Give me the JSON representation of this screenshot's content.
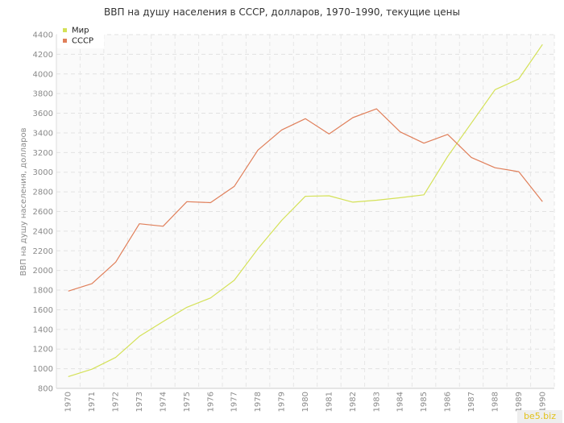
{
  "chart_data": {
    "type": "line",
    "title": "ВВП на душу населения в СССР, долларов, 1970–1990, текущие цены",
    "ylabel": "ВВП на душу населения, долларов",
    "xlabel": "",
    "x": [
      "1970",
      "1971",
      "1972",
      "1973",
      "1974",
      "1975",
      "1976",
      "1977",
      "1978",
      "1979",
      "1980",
      "1981",
      "1982",
      "1983",
      "1984",
      "1985",
      "1986",
      "1987",
      "1988",
      "1989",
      "1990"
    ],
    "ylim": [
      800,
      4400
    ],
    "yticks": [
      800,
      1000,
      1200,
      1400,
      1600,
      1800,
      2000,
      2200,
      2400,
      2600,
      2800,
      3000,
      3200,
      3400,
      3600,
      3800,
      4000,
      4200,
      4400
    ],
    "grid": true,
    "legend_position": "top-left",
    "series": [
      {
        "name": "Мир",
        "color": "#d4e157",
        "values": [
          920,
          995,
          1115,
          1330,
          1480,
          1625,
          1720,
          1900,
          2220,
          2510,
          2755,
          2760,
          2695,
          2715,
          2740,
          2770,
          3160,
          3500,
          3840,
          3950,
          4300
        ]
      },
      {
        "name": "СССР",
        "color": "#e07f5a",
        "values": [
          1790,
          1865,
          2085,
          2475,
          2450,
          2700,
          2690,
          2855,
          3225,
          3430,
          3545,
          3390,
          3555,
          3645,
          3410,
          3295,
          3385,
          3150,
          3045,
          3005,
          2700
        ]
      }
    ]
  },
  "watermark": "be5.biz"
}
